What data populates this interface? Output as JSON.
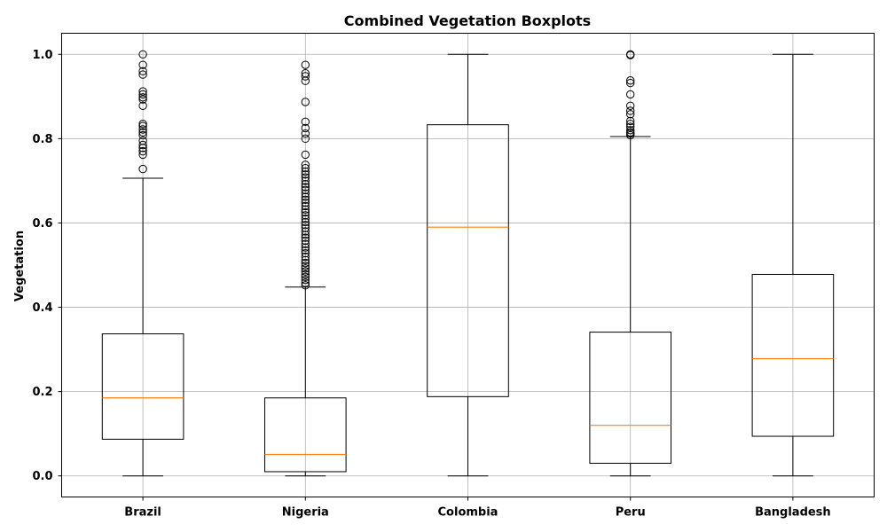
{
  "chart_data": {
    "type": "boxplot",
    "title": "Combined Vegetation Boxplots",
    "xlabel": "",
    "ylabel": "Vegetation",
    "ylim": [
      -0.05,
      1.05
    ],
    "yticks": [
      "0.0",
      "0.2",
      "0.4",
      "0.6",
      "0.8",
      "1.0"
    ],
    "grid": true,
    "colors": {
      "box": "#000000",
      "median": "#ff7f0e",
      "grid": "#b0b0b0"
    },
    "categories": [
      "Brazil",
      "Nigeria",
      "Colombia",
      "Peru",
      "Bangladesh"
    ],
    "boxes": [
      {
        "name": "Brazil",
        "whisker_low": 0.0,
        "q1": 0.087,
        "median": 0.185,
        "q3": 0.337,
        "whisker_high": 0.706,
        "outliers": [
          0.728,
          0.762,
          0.77,
          0.778,
          0.785,
          0.795,
          0.808,
          0.815,
          0.822,
          0.83,
          0.835,
          0.878,
          0.893,
          0.898,
          0.905,
          0.912,
          0.952,
          0.96,
          0.975,
          1.0
        ]
      },
      {
        "name": "Nigeria",
        "whisker_low": 0.0,
        "q1": 0.01,
        "median": 0.051,
        "q3": 0.185,
        "whisker_high": 0.448,
        "outliers": [
          0.452,
          0.458,
          0.465,
          0.472,
          0.478,
          0.485,
          0.492,
          0.498,
          0.505,
          0.512,
          0.52,
          0.528,
          0.535,
          0.542,
          0.55,
          0.558,
          0.565,
          0.572,
          0.58,
          0.588,
          0.595,
          0.602,
          0.61,
          0.618,
          0.625,
          0.632,
          0.64,
          0.648,
          0.655,
          0.662,
          0.67,
          0.678,
          0.685,
          0.692,
          0.7,
          0.708,
          0.715,
          0.722,
          0.73,
          0.738,
          0.762,
          0.8,
          0.812,
          0.825,
          0.84,
          0.887,
          0.937,
          0.948,
          0.955,
          0.975
        ]
      },
      {
        "name": "Colombia",
        "whisker_low": 0.0,
        "q1": 0.188,
        "median": 0.59,
        "q3": 0.833,
        "whisker_high": 1.0,
        "outliers": []
      },
      {
        "name": "Peru",
        "whisker_low": 0.0,
        "q1": 0.03,
        "median": 0.12,
        "q3": 0.341,
        "whisker_high": 0.805,
        "outliers": [
          0.808,
          0.812,
          0.815,
          0.82,
          0.828,
          0.835,
          0.842,
          0.858,
          0.866,
          0.878,
          0.905,
          0.932,
          0.938,
          0.998,
          1.0
        ]
      },
      {
        "name": "Bangladesh",
        "whisker_low": 0.0,
        "q1": 0.094,
        "median": 0.278,
        "q3": 0.478,
        "whisker_high": 1.0,
        "outliers": []
      }
    ]
  }
}
